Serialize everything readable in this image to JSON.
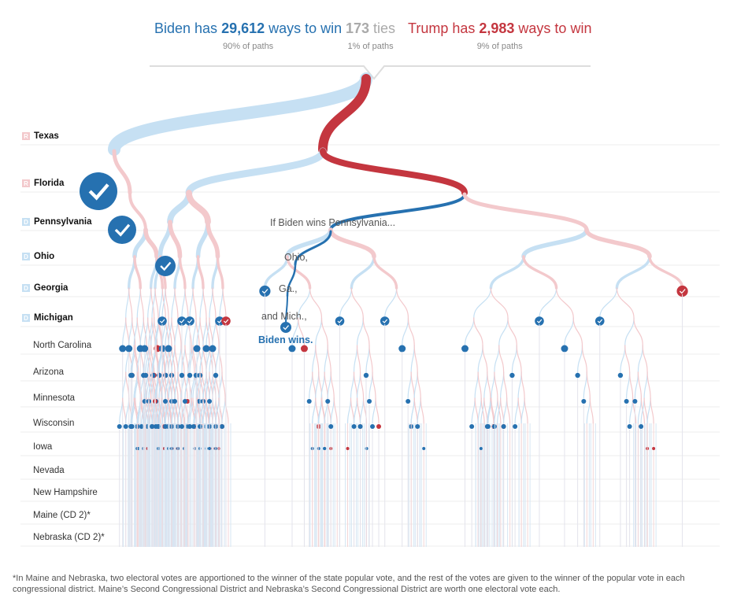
{
  "header": {
    "biden": {
      "prefix": "Biden has ",
      "count": "29,612",
      "suffix": " ways to win",
      "share": "90% of paths"
    },
    "ties": {
      "count": "173",
      "suffix": " ties",
      "share": "1% of paths"
    },
    "trump": {
      "prefix": "Trump has ",
      "count": "2,983",
      "suffix": " ways to win",
      "share": "9% of paths"
    }
  },
  "colors": {
    "biden": "#2671b0",
    "trump": "#c4363f",
    "biden_light": "#c6e0f3",
    "trump_light": "#f3c9cc"
  },
  "rows": [
    {
      "label": "Texas",
      "badge": "R",
      "bold": true
    },
    {
      "label": "Florida",
      "badge": "R",
      "bold": true
    },
    {
      "label": "Pennsylvania",
      "badge": "D",
      "bold": true
    },
    {
      "label": "Ohio",
      "badge": "D",
      "bold": true
    },
    {
      "label": "Georgia",
      "badge": "D",
      "bold": true
    },
    {
      "label": "Michigan",
      "badge": "D",
      "bold": true
    },
    {
      "label": "North Carolina"
    },
    {
      "label": "Arizona"
    },
    {
      "label": "Minnesota"
    },
    {
      "label": "Wisconsin"
    },
    {
      "label": "Iowa"
    },
    {
      "label": "Nevada"
    },
    {
      "label": "New Hampshire"
    },
    {
      "label": "Maine (CD 2)*"
    },
    {
      "label": "Nebraska (CD 2)*"
    }
  ],
  "annotations": {
    "pa": "If Biden wins Pennsylvania...",
    "oh": "Ohio,",
    "ga": "Ga.,",
    "mi": "and Mich.,",
    "win": "Biden wins."
  },
  "footnote": "*In Maine and Nebraska, two electoral votes are apportioned to the winner of the state popular vote, and the rest of the votes are given to the winner of the popular vote in each congressional district. Maine’s Second Congressional District and Nebraska’s Second Congressional District are worth one electoral vote each."
}
